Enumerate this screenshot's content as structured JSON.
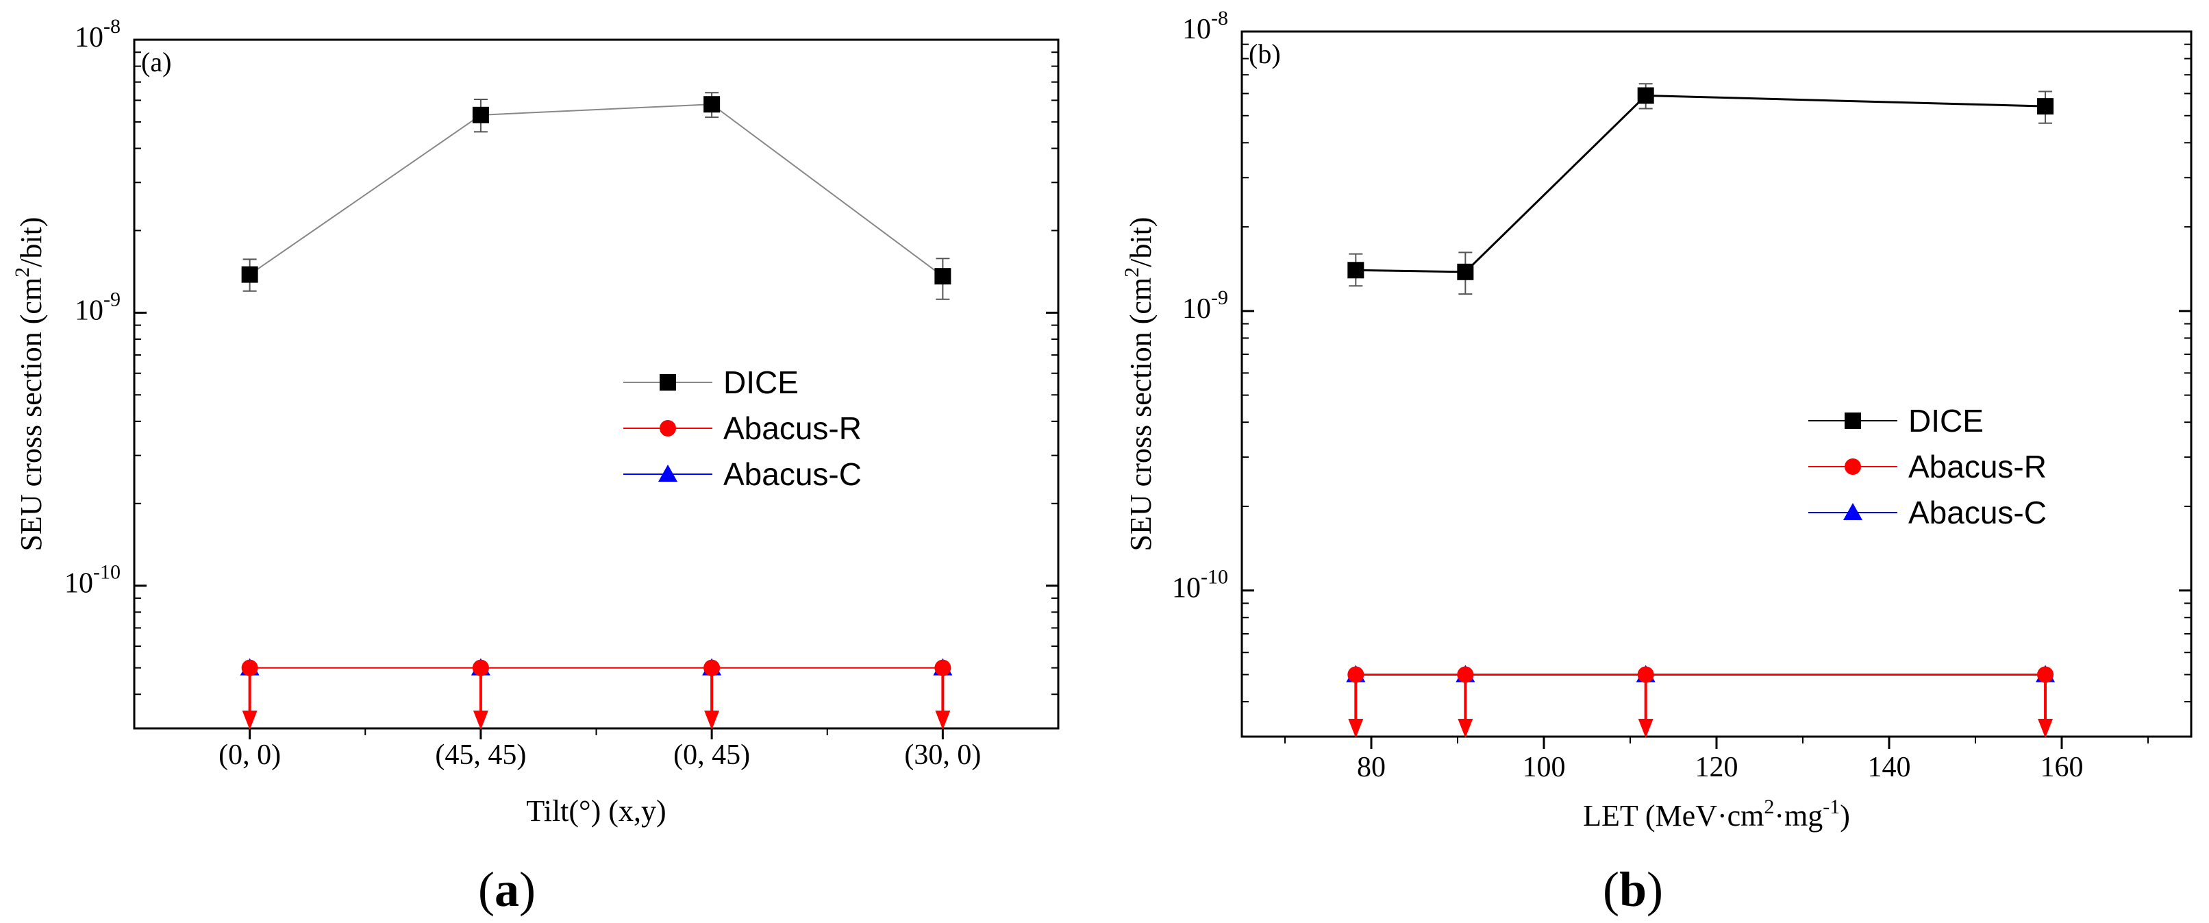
{
  "chart_data": [
    {
      "type": "line",
      "panel_label": "(a)",
      "caption": {
        "open": "(",
        "letter": "a",
        "close": ")"
      },
      "xlabel": "Tilt(°) (x,y)",
      "ylabel": "SEU cross section (cm²/bit)",
      "ylabel_parts": [
        "SEU cross section (cm",
        "2",
        "/bit)"
      ],
      "yscale": "log",
      "ylim": [
        3e-11,
        1e-08
      ],
      "xlim": [
        -0.5,
        3.5
      ],
      "categories": [
        "(0, 0)",
        "(45, 45)",
        "(0, 45)",
        "(30, 0)"
      ],
      "x": [
        0,
        1,
        2,
        3
      ],
      "y_ticks": [
        {
          "value": 1e-08,
          "base": "10",
          "exp": "-8"
        },
        {
          "value": 1e-09,
          "base": "10",
          "exp": "-9"
        },
        {
          "value": 1e-10,
          "base": "10",
          "exp": "-10"
        }
      ],
      "series": [
        {
          "name": "DICE",
          "marker": "square",
          "color": "#000000",
          "line_color": "#888888",
          "values": [
            1.38e-09,
            5.3e-09,
            5.8e-09,
            1.36e-09
          ],
          "err_low": [
            1.2e-09,
            4.6e-09,
            5.2e-09,
            1.12e-09
          ],
          "err_high": [
            1.57e-09,
            6.05e-09,
            6.4e-09,
            1.58e-09
          ]
        },
        {
          "name": "Abacus-R",
          "marker": "circle",
          "color": "#ff0000",
          "line_color": "#ff0000",
          "values": [
            5e-11,
            5e-11,
            5e-11,
            5e-11
          ],
          "upper_limit": true
        },
        {
          "name": "Abacus-C",
          "marker": "triangle",
          "color": "#0000ff",
          "line_color": "#0000ff",
          "values": [
            5e-11,
            5e-11,
            5e-11,
            5e-11
          ]
        }
      ],
      "legend_location": "center-right"
    },
    {
      "type": "line",
      "panel_label": "(b)",
      "caption": {
        "open": "(",
        "letter": "b",
        "close": ")"
      },
      "xlabel": "LET (MeV·cm²·mg⁻¹)",
      "xlabel_parts": [
        "LET (MeV·cm",
        "2",
        "·mg",
        "-1",
        ")"
      ],
      "ylabel": "SEU cross section (cm²/bit)",
      "ylabel_parts": [
        "SEU cross section (cm",
        "2",
        "/bit)"
      ],
      "yscale": "log",
      "ylim": [
        3e-11,
        1e-08
      ],
      "xlim": [
        65,
        175
      ],
      "x_ticks": [
        80,
        100,
        120,
        140,
        160
      ],
      "x_ticks_minor": [
        70,
        90,
        110,
        130,
        150,
        170
      ],
      "x": [
        78.2,
        90.9,
        111.8,
        158.1
      ],
      "y_ticks": [
        {
          "value": 1e-08,
          "base": "10",
          "exp": "-8"
        },
        {
          "value": 1e-09,
          "base": "10",
          "exp": "-9"
        },
        {
          "value": 1e-10,
          "base": "10",
          "exp": "-10"
        }
      ],
      "series": [
        {
          "name": "DICE",
          "marker": "square",
          "color": "#000000",
          "line_color": "#000000",
          "values": [
            1.4e-09,
            1.38e-09,
            5.9e-09,
            5.4e-09
          ],
          "err_low": [
            1.23e-09,
            1.15e-09,
            5.3e-09,
            4.7e-09
          ],
          "err_high": [
            1.6e-09,
            1.62e-09,
            6.5e-09,
            6.1e-09
          ]
        },
        {
          "name": "Abacus-R",
          "marker": "circle",
          "color": "#ff0000",
          "line_color": "#ff0000",
          "values": [
            5e-11,
            5e-11,
            5e-11,
            5e-11
          ],
          "upper_limit": true
        },
        {
          "name": "Abacus-C",
          "marker": "triangle",
          "color": "#0000ff",
          "line_color": "#0000ff",
          "values": [
            5e-11,
            5e-11,
            5e-11,
            5e-11
          ]
        }
      ],
      "legend_location": "center-right"
    }
  ]
}
